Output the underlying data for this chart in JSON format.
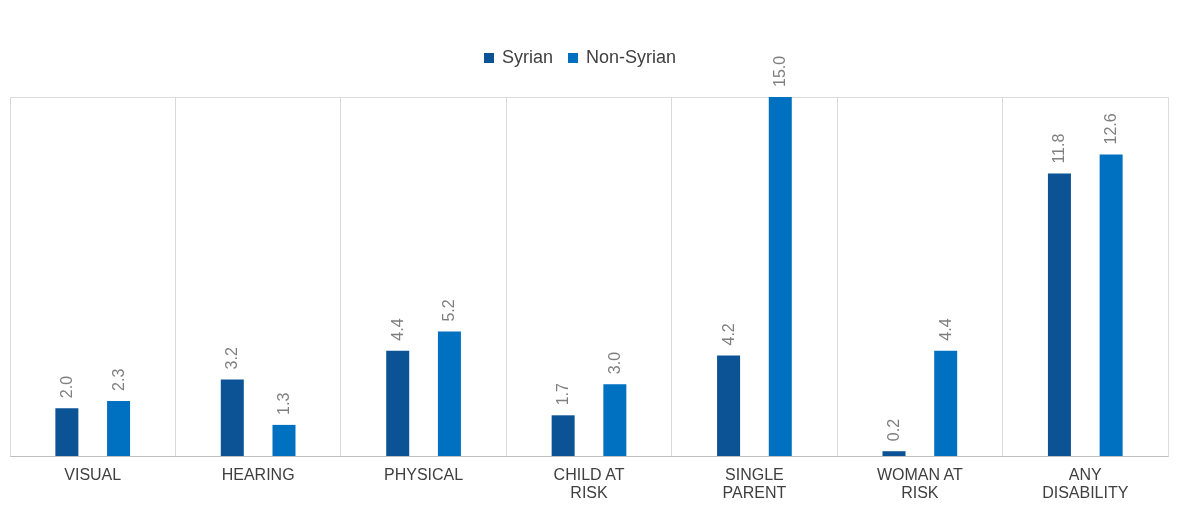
{
  "chart_data": {
    "type": "bar",
    "categories": [
      "VISUAL",
      "HEARING",
      "PHYSICAL",
      "CHILD AT RISK",
      "SINGLE PARENT",
      "WOMAN AT RISK",
      "ANY DISABILITY"
    ],
    "series": [
      {
        "name": "Syrian",
        "color": "#0b5394",
        "values": [
          2.0,
          3.2,
          4.4,
          1.7,
          4.2,
          0.2,
          11.8
        ],
        "value_labels": [
          "2.0",
          "3.2",
          "4.4",
          "1.7",
          "4.2",
          "0.2",
          "11.8"
        ]
      },
      {
        "name": "Non-Syrian",
        "color": "#0070c0",
        "values": [
          2.3,
          1.3,
          5.2,
          3.0,
          15.0,
          4.4,
          12.6
        ],
        "value_labels": [
          "2.3",
          "1.3",
          "5.2",
          "3.0",
          "15.0",
          "4.4",
          "12.6"
        ]
      }
    ],
    "legend": "top",
    "grid": "x",
    "tick_labels": "x"
  }
}
